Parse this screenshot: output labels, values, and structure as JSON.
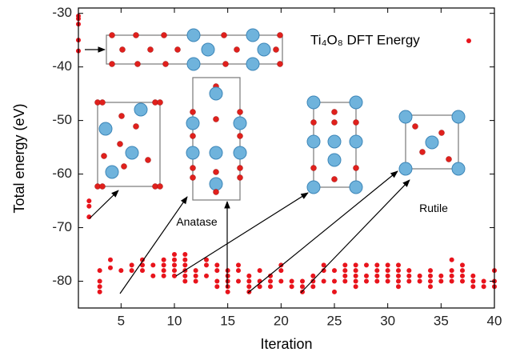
{
  "chart_data": {
    "type": "scatter",
    "x_label": "Iteration",
    "y_label": "Total energy (eV)",
    "annotations": [
      "Anatase",
      "Rutile"
    ],
    "xlim": [
      1,
      40
    ],
    "xticks": [
      5,
      10,
      15,
      20,
      25,
      30,
      35,
      40
    ],
    "ylim": [
      -85,
      -29
    ],
    "yticks": [
      -30,
      -40,
      -50,
      -60,
      -70,
      -80
    ],
    "series": [
      {
        "name": "Ti₄O₈ DFT Energy",
        "color": "#e8141c",
        "x": [
          1,
          1,
          1,
          1,
          1,
          2,
          2,
          2,
          3,
          3,
          3,
          3,
          4,
          4,
          5,
          6,
          6,
          7,
          7,
          7,
          8,
          8,
          9,
          9,
          9,
          9,
          10,
          10,
          10,
          10,
          10,
          11,
          11,
          11,
          11,
          11,
          11,
          12,
          12,
          12,
          13,
          13,
          13,
          14,
          14,
          14,
          14,
          15,
          15,
          15,
          15,
          15,
          16,
          16,
          16,
          17,
          17,
          17,
          17,
          18,
          18,
          18,
          19,
          19,
          19,
          20,
          20,
          20,
          21,
          21,
          22,
          22,
          22,
          23,
          23,
          23,
          24,
          24,
          24,
          25,
          25,
          25,
          26,
          26,
          26,
          26,
          27,
          27,
          27,
          27,
          27,
          28,
          28,
          28,
          29,
          29,
          29,
          29,
          30,
          30,
          30,
          30,
          31,
          31,
          31,
          31,
          31,
          32,
          32,
          32,
          33,
          33,
          34,
          34,
          34,
          34,
          35,
          35,
          36,
          36,
          36,
          36,
          37,
          37,
          37,
          37,
          38,
          38,
          38,
          39,
          39,
          40,
          40,
          40
        ],
        "values": [
          -30.5,
          -31,
          -32,
          -35,
          -37,
          -65,
          -66,
          -68,
          -78,
          -80,
          -81,
          -82,
          -76,
          -77.5,
          -78,
          -77,
          -78,
          -76,
          -77,
          -78,
          -77,
          -79,
          -76,
          -77,
          -78,
          -79,
          -75,
          -76,
          -77,
          -78,
          -79,
          -75,
          -76,
          -77,
          -78,
          -79,
          -80,
          -78,
          -79,
          -80,
          -76,
          -77,
          -79,
          -77,
          -78,
          -80,
          -81,
          -78,
          -79,
          -80,
          -81,
          -82,
          -77,
          -78,
          -80,
          -79,
          -80,
          -81,
          -82,
          -78,
          -80,
          -81,
          -79,
          -80,
          -81,
          -77,
          -78,
          -80,
          -80,
          -81,
          -80,
          -81,
          -82,
          -79,
          -80,
          -81,
          -77,
          -78,
          -80,
          -78,
          -80,
          -82,
          -77,
          -78,
          -79,
          -80,
          -77,
          -78,
          -79,
          -80,
          -81,
          -77,
          -79,
          -80,
          -77,
          -78,
          -79,
          -80,
          -77,
          -78,
          -79,
          -80,
          -77,
          -78,
          -79,
          -80,
          -81,
          -78,
          -79,
          -80,
          -79,
          -80,
          -78,
          -79,
          -80,
          -81,
          -79,
          -80,
          -76,
          -78,
          -79,
          -80,
          -77,
          -78,
          -79,
          -80,
          -79,
          -80,
          -81,
          -80,
          -81,
          -78,
          -80,
          -81
        ]
      }
    ]
  }
}
